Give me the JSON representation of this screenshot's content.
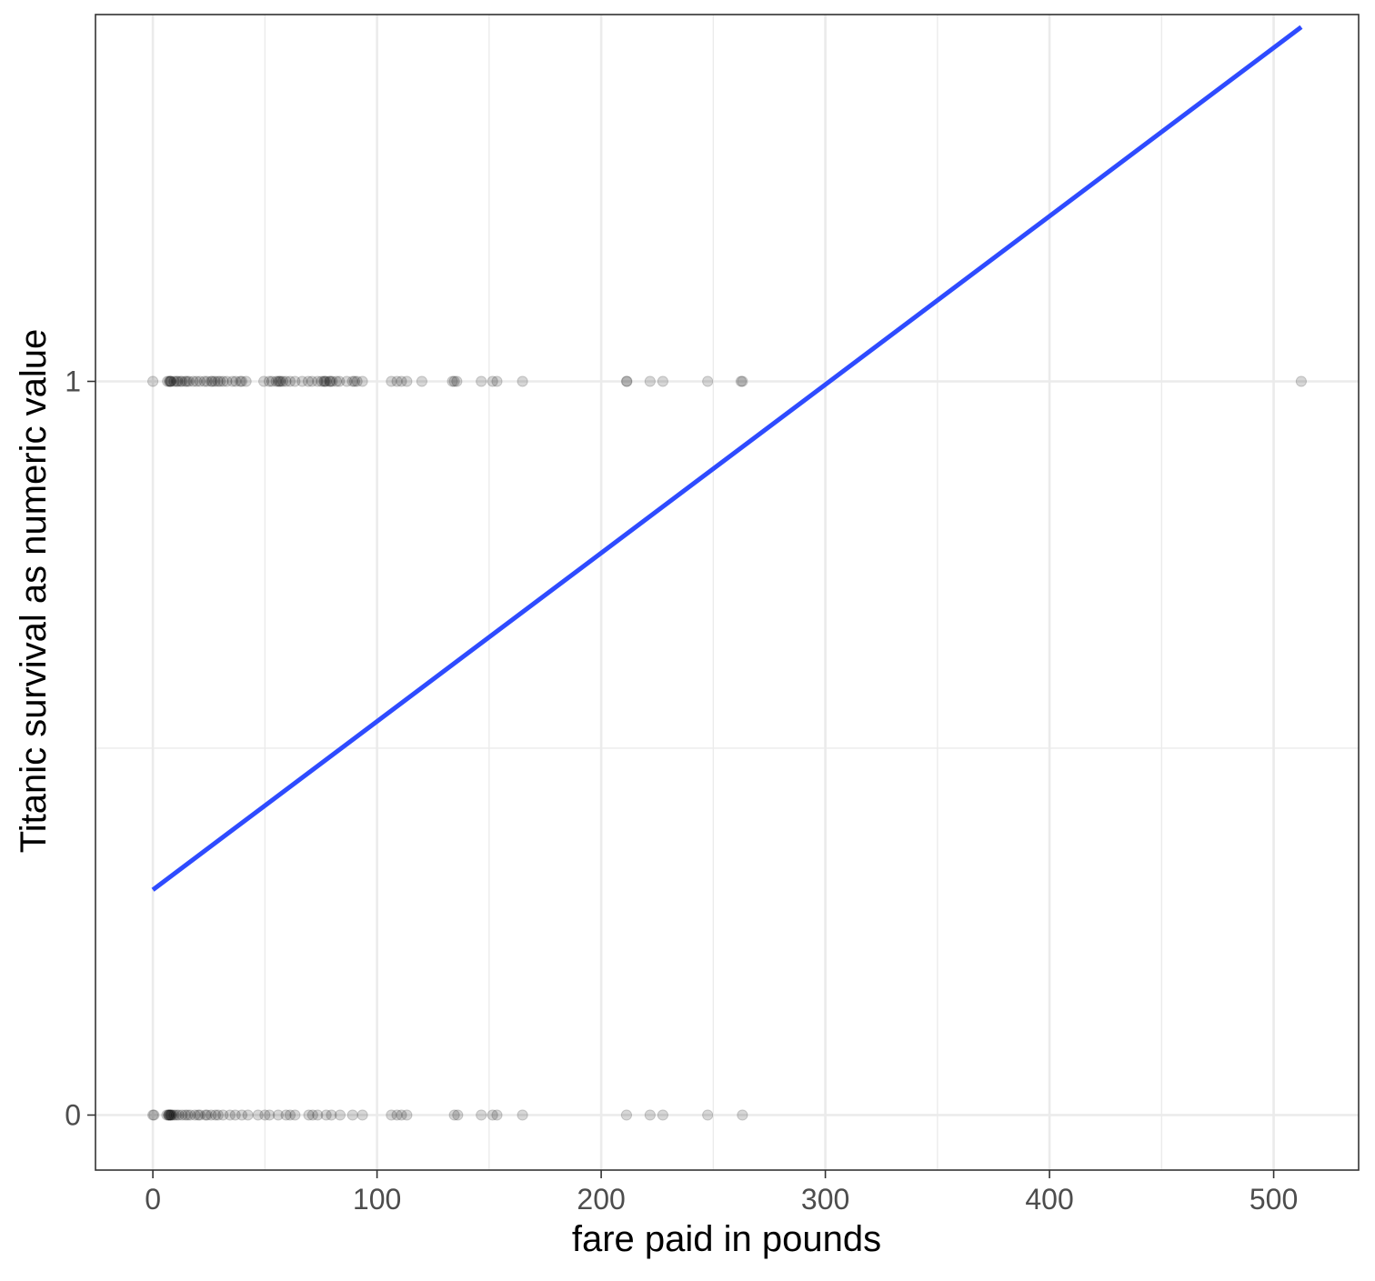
{
  "chart_data": {
    "type": "scatter",
    "title": "",
    "xlabel": "fare paid in pounds",
    "ylabel": "Titanic survival as numeric value",
    "xlim": [
      -25.6,
      537.9
    ],
    "ylim": [
      -0.075,
      1.5
    ],
    "x_ticks": [
      0,
      100,
      200,
      300,
      400,
      500
    ],
    "x_tick_labels": [
      "0",
      "100",
      "200",
      "300",
      "400",
      "500"
    ],
    "y_ticks": [
      0,
      1
    ],
    "y_tick_labels": [
      "0",
      "1"
    ],
    "grid": true,
    "colors": {
      "points": "#000000",
      "fit_line": "#2e4bff",
      "grid": "#ebebeb",
      "panel_border": "#333333",
      "tick_text": "#4d4d4d",
      "axis_title": "#000000"
    },
    "series": [
      {
        "values": [
          {
            "x": 0,
            "y": 1
          },
          {
            "x": 6.5,
            "y": 1
          },
          {
            "x": 7.25,
            "y": 1
          },
          {
            "x": 7.7,
            "y": 1
          },
          {
            "x": 7.9,
            "y": 1
          },
          {
            "x": 8.05,
            "y": 1
          },
          {
            "x": 9.5,
            "y": 1
          },
          {
            "x": 10.5,
            "y": 1
          },
          {
            "x": 11.1,
            "y": 1
          },
          {
            "x": 12.3,
            "y": 1
          },
          {
            "x": 13,
            "y": 1
          },
          {
            "x": 14.5,
            "y": 1
          },
          {
            "x": 15.2,
            "y": 1
          },
          {
            "x": 16.1,
            "y": 1
          },
          {
            "x": 18,
            "y": 1
          },
          {
            "x": 19.5,
            "y": 1
          },
          {
            "x": 21,
            "y": 1
          },
          {
            "x": 23,
            "y": 1
          },
          {
            "x": 24.15,
            "y": 1
          },
          {
            "x": 26,
            "y": 1
          },
          {
            "x": 26.55,
            "y": 1
          },
          {
            "x": 27.7,
            "y": 1
          },
          {
            "x": 29,
            "y": 1
          },
          {
            "x": 30,
            "y": 1
          },
          {
            "x": 31.4,
            "y": 1
          },
          {
            "x": 33,
            "y": 1
          },
          {
            "x": 35.5,
            "y": 1
          },
          {
            "x": 37,
            "y": 1
          },
          {
            "x": 39,
            "y": 1
          },
          {
            "x": 39.7,
            "y": 1
          },
          {
            "x": 41.6,
            "y": 1
          },
          {
            "x": 49.5,
            "y": 1
          },
          {
            "x": 51.9,
            "y": 1
          },
          {
            "x": 53.1,
            "y": 1
          },
          {
            "x": 55,
            "y": 1
          },
          {
            "x": 55.9,
            "y": 1
          },
          {
            "x": 56.5,
            "y": 1
          },
          {
            "x": 57,
            "y": 1
          },
          {
            "x": 57.98,
            "y": 1
          },
          {
            "x": 59.4,
            "y": 1
          },
          {
            "x": 61.2,
            "y": 1
          },
          {
            "x": 63.4,
            "y": 1
          },
          {
            "x": 66.6,
            "y": 1
          },
          {
            "x": 69.3,
            "y": 1
          },
          {
            "x": 71,
            "y": 1
          },
          {
            "x": 73.5,
            "y": 1
          },
          {
            "x": 75.25,
            "y": 1
          },
          {
            "x": 76.3,
            "y": 1
          },
          {
            "x": 76.7,
            "y": 1
          },
          {
            "x": 77.3,
            "y": 1
          },
          {
            "x": 78.85,
            "y": 1
          },
          {
            "x": 79.2,
            "y": 1
          },
          {
            "x": 80,
            "y": 1
          },
          {
            "x": 81.9,
            "y": 1
          },
          {
            "x": 83.2,
            "y": 1
          },
          {
            "x": 86.5,
            "y": 1
          },
          {
            "x": 89.1,
            "y": 1
          },
          {
            "x": 90,
            "y": 1
          },
          {
            "x": 91.1,
            "y": 1
          },
          {
            "x": 93.5,
            "y": 1
          },
          {
            "x": 106.4,
            "y": 1
          },
          {
            "x": 108.9,
            "y": 1
          },
          {
            "x": 110.9,
            "y": 1
          },
          {
            "x": 113.3,
            "y": 1
          },
          {
            "x": 120,
            "y": 1
          },
          {
            "x": 133.65,
            "y": 1
          },
          {
            "x": 134.5,
            "y": 1
          },
          {
            "x": 135.6,
            "y": 1
          },
          {
            "x": 146.5,
            "y": 1
          },
          {
            "x": 151.55,
            "y": 1
          },
          {
            "x": 153.5,
            "y": 1
          },
          {
            "x": 164.9,
            "y": 1
          },
          {
            "x": 211.3,
            "y": 1
          },
          {
            "x": 211.5,
            "y": 1
          },
          {
            "x": 221.8,
            "y": 1
          },
          {
            "x": 227.5,
            "y": 1
          },
          {
            "x": 247.5,
            "y": 1
          },
          {
            "x": 262.4,
            "y": 1
          },
          {
            "x": 263,
            "y": 1
          },
          {
            "x": 512.3,
            "y": 1
          },
          {
            "x": 0,
            "y": 0
          },
          {
            "x": 0.5,
            "y": 0
          },
          {
            "x": 6.2,
            "y": 0
          },
          {
            "x": 6.95,
            "y": 0
          },
          {
            "x": 7.05,
            "y": 0
          },
          {
            "x": 7.25,
            "y": 0
          },
          {
            "x": 7.75,
            "y": 0
          },
          {
            "x": 7.9,
            "y": 0
          },
          {
            "x": 8.05,
            "y": 0
          },
          {
            "x": 8.66,
            "y": 0
          },
          {
            "x": 9.5,
            "y": 0
          },
          {
            "x": 10.5,
            "y": 0
          },
          {
            "x": 11.5,
            "y": 0
          },
          {
            "x": 13,
            "y": 0
          },
          {
            "x": 14.45,
            "y": 0
          },
          {
            "x": 15.5,
            "y": 0
          },
          {
            "x": 16.7,
            "y": 0
          },
          {
            "x": 18.75,
            "y": 0
          },
          {
            "x": 20.2,
            "y": 0
          },
          {
            "x": 21,
            "y": 0
          },
          {
            "x": 23.45,
            "y": 0
          },
          {
            "x": 24.15,
            "y": 0
          },
          {
            "x": 26,
            "y": 0
          },
          {
            "x": 27.9,
            "y": 0
          },
          {
            "x": 29.1,
            "y": 0
          },
          {
            "x": 31.3,
            "y": 0
          },
          {
            "x": 34.4,
            "y": 0
          },
          {
            "x": 36.75,
            "y": 0
          },
          {
            "x": 39.7,
            "y": 0
          },
          {
            "x": 42.4,
            "y": 0
          },
          {
            "x": 46.9,
            "y": 0
          },
          {
            "x": 50,
            "y": 0
          },
          {
            "x": 52,
            "y": 0
          },
          {
            "x": 55.9,
            "y": 0
          },
          {
            "x": 59.4,
            "y": 0
          },
          {
            "x": 61.2,
            "y": 0
          },
          {
            "x": 63.4,
            "y": 0
          },
          {
            "x": 69.55,
            "y": 0
          },
          {
            "x": 71.3,
            "y": 0
          },
          {
            "x": 73.5,
            "y": 0
          },
          {
            "x": 77.3,
            "y": 0
          },
          {
            "x": 79.65,
            "y": 0
          },
          {
            "x": 83.5,
            "y": 0
          },
          {
            "x": 89.1,
            "y": 0
          },
          {
            "x": 93.5,
            "y": 0
          },
          {
            "x": 106.4,
            "y": 0
          },
          {
            "x": 108.9,
            "y": 0
          },
          {
            "x": 110.9,
            "y": 0
          },
          {
            "x": 113.3,
            "y": 0
          },
          {
            "x": 134.5,
            "y": 0
          },
          {
            "x": 136,
            "y": 0
          },
          {
            "x": 146.5,
            "y": 0
          },
          {
            "x": 151.55,
            "y": 0
          },
          {
            "x": 153.5,
            "y": 0
          },
          {
            "x": 164.9,
            "y": 0
          },
          {
            "x": 211.3,
            "y": 0
          },
          {
            "x": 221.8,
            "y": 0
          },
          {
            "x": 227.5,
            "y": 0
          },
          {
            "x": 247.5,
            "y": 0
          },
          {
            "x": 263,
            "y": 0
          }
        ]
      }
    ],
    "fit_line": {
      "type": "linear",
      "x": [
        0,
        512.3
      ],
      "y": [
        0.307,
        1.483
      ]
    }
  }
}
